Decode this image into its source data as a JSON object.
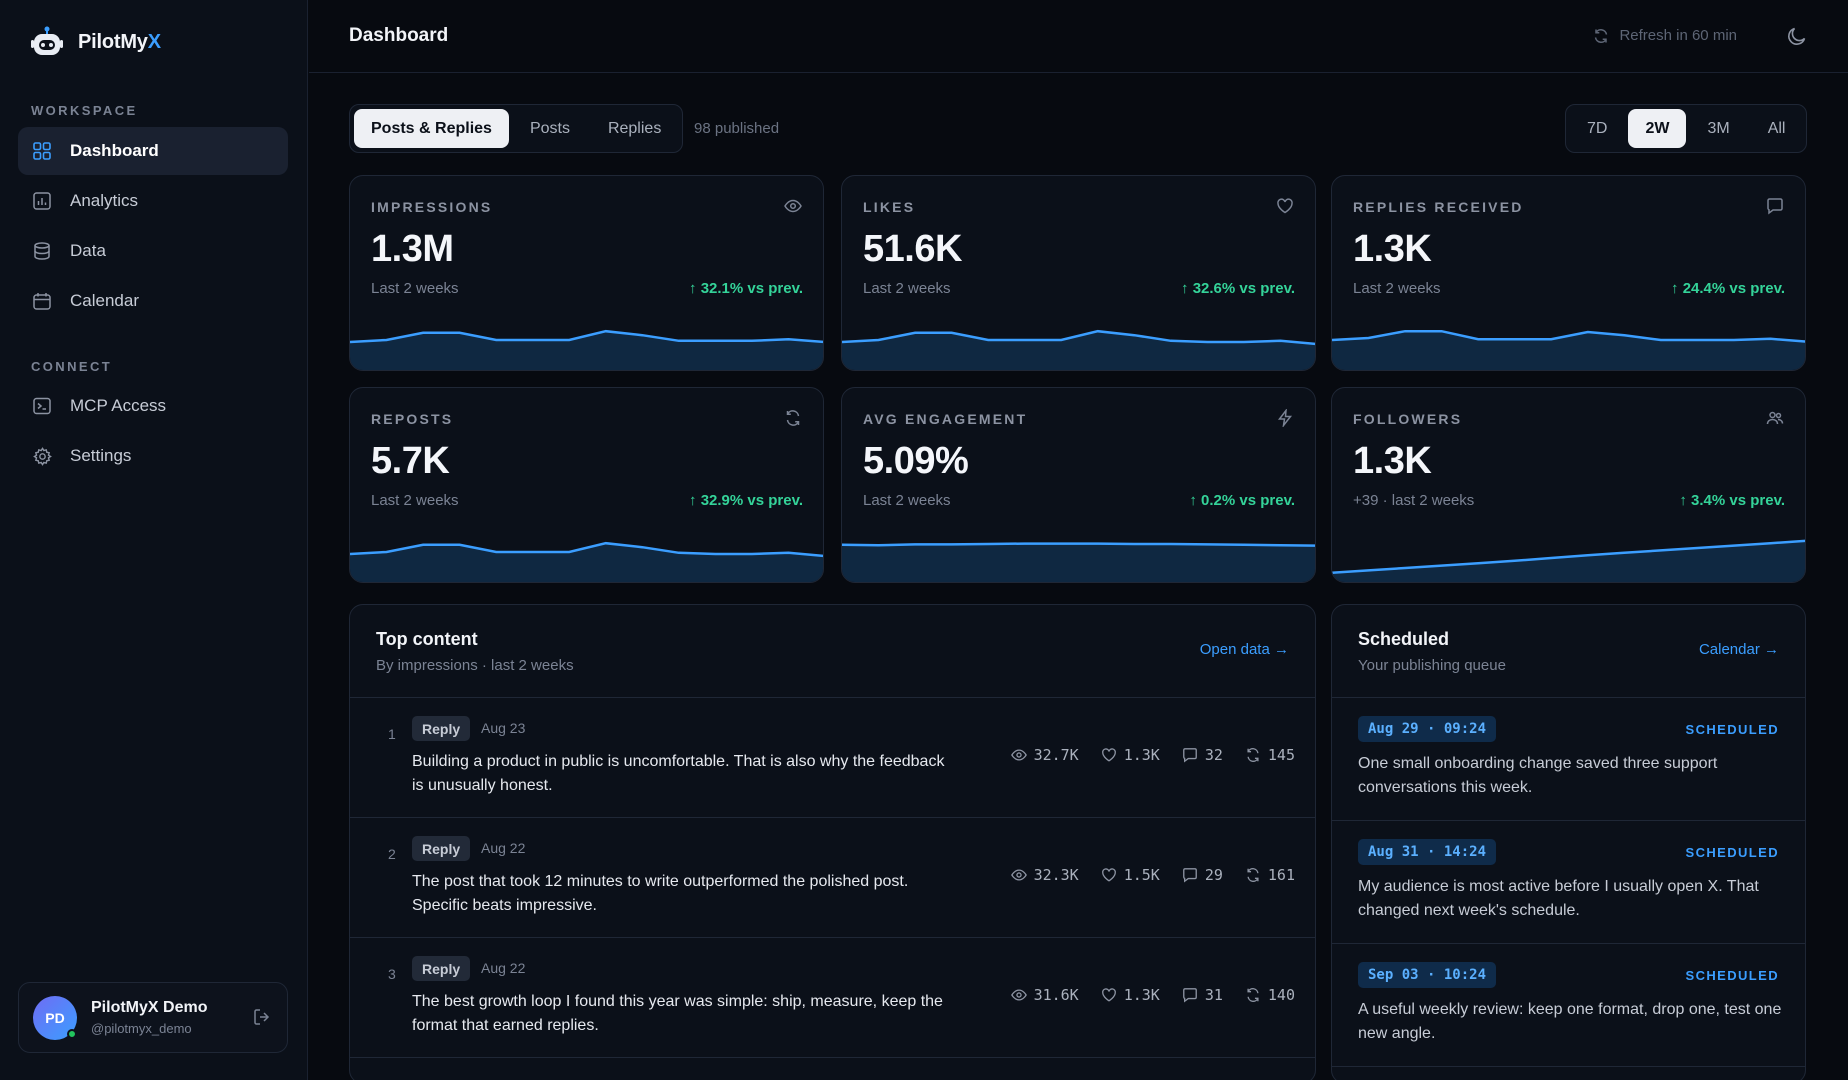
{
  "brand": {
    "name": "PilotMy",
    "accent": "X"
  },
  "sidebar": {
    "workspace_label": "WORKSPACE",
    "connect_label": "CONNECT",
    "items": [
      {
        "label": "Dashboard",
        "icon": "grid-icon"
      },
      {
        "label": "Analytics",
        "icon": "bar-chart-icon"
      },
      {
        "label": "Data",
        "icon": "database-icon"
      },
      {
        "label": "Calendar",
        "icon": "calendar-icon"
      },
      {
        "label": "MCP Access",
        "icon": "terminal-icon"
      },
      {
        "label": "Settings",
        "icon": "gear-icon"
      }
    ]
  },
  "user": {
    "initials": "PD",
    "name": "PilotMyX Demo",
    "handle": "@pilotmyx_demo"
  },
  "header": {
    "title": "Dashboard",
    "refresh": "Refresh in 60 min"
  },
  "filters": {
    "content_tabs": [
      "Posts & Replies",
      "Posts",
      "Replies"
    ],
    "published": "98 published",
    "ranges": [
      "7D",
      "2W",
      "3M",
      "All"
    ]
  },
  "stats": [
    {
      "label": "IMPRESSIONS",
      "value": "1.3M",
      "sub": "Last 2 weeks",
      "delta": "32.1% vs prev.",
      "icon": "eye-icon",
      "trend": [
        0.55,
        0.6,
        0.78,
        0.78,
        0.6,
        0.6,
        0.6,
        0.82,
        0.72,
        0.58,
        0.58,
        0.58,
        0.62,
        0.55
      ]
    },
    {
      "label": "LIKES",
      "value": "51.6K",
      "sub": "Last 2 weeks",
      "delta": "32.6% vs prev.",
      "icon": "heart-icon",
      "trend": [
        0.55,
        0.6,
        0.78,
        0.78,
        0.6,
        0.6,
        0.6,
        0.82,
        0.72,
        0.58,
        0.55,
        0.55,
        0.58,
        0.5
      ]
    },
    {
      "label": "REPLIES RECEIVED",
      "value": "1.3K",
      "sub": "Last 2 weeks",
      "delta": "24.4% vs prev.",
      "icon": "chat-icon",
      "trend": [
        0.6,
        0.65,
        0.82,
        0.82,
        0.62,
        0.62,
        0.62,
        0.8,
        0.72,
        0.6,
        0.6,
        0.6,
        0.63,
        0.56
      ]
    },
    {
      "label": "REPOSTS",
      "value": "5.7K",
      "sub": "Last 2 weeks",
      "delta": "32.9% vs prev.",
      "icon": "repost-icon",
      "trend": [
        0.55,
        0.6,
        0.78,
        0.78,
        0.6,
        0.6,
        0.6,
        0.82,
        0.72,
        0.58,
        0.55,
        0.55,
        0.58,
        0.5
      ]
    },
    {
      "label": "AVG ENGAGEMENT",
      "value": "5.09%",
      "sub": "Last 2 weeks",
      "delta": "0.2% vs prev.",
      "icon": "bolt-icon",
      "trend": [
        0.78,
        0.77,
        0.79,
        0.79,
        0.8,
        0.81,
        0.81,
        0.81,
        0.8,
        0.8,
        0.79,
        0.78,
        0.77,
        0.76
      ]
    },
    {
      "label": "FOLLOWERS",
      "value": "1.3K",
      "sub": "+39 · last 2 weeks",
      "delta": "3.4% vs prev.",
      "icon": "users-icon",
      "trend": [
        0.08,
        0.14,
        0.2,
        0.26,
        0.32,
        0.38,
        0.45,
        0.52,
        0.58,
        0.64,
        0.7,
        0.76,
        0.82,
        0.88
      ]
    }
  ],
  "top_content": {
    "title": "Top content",
    "subtitle": "By impressions · last 2 weeks",
    "link": "Open data →",
    "rows": [
      {
        "num": "1",
        "type": "Reply",
        "date": "Aug 23",
        "text": "Building a product in public is uncomfortable. That is also why the feedback is unusually honest.",
        "views": "32.7K",
        "likes": "1.3K",
        "replies": "32",
        "reposts": "145"
      },
      {
        "num": "2",
        "type": "Reply",
        "date": "Aug 22",
        "text": "The post that took 12 minutes to write outperformed the polished post. Specific beats impressive.",
        "views": "32.3K",
        "likes": "1.5K",
        "replies": "29",
        "reposts": "161"
      },
      {
        "num": "3",
        "type": "Reply",
        "date": "Aug 22",
        "text": "The best growth loop I found this year was simple: ship, measure, keep the format that earned replies.",
        "views": "31.6K",
        "likes": "1.3K",
        "replies": "31",
        "reposts": "140"
      }
    ]
  },
  "scheduled": {
    "title": "Scheduled",
    "subtitle": "Your publishing queue",
    "link": "Calendar →",
    "items": [
      {
        "time": "Aug 29 · 09:24",
        "status": "SCHEDULED",
        "text": "One small onboarding change saved three support conversations this week."
      },
      {
        "time": "Aug 31 · 14:24",
        "status": "SCHEDULED",
        "text": "My audience is most active before I usually open X. That changed next week's schedule."
      },
      {
        "time": "Sep 03 · 10:24",
        "status": "SCHEDULED",
        "text": "A useful weekly review: keep one format, drop one, test one new angle."
      }
    ]
  },
  "colors": {
    "accent": "#3b9eff",
    "positive": "#34d399",
    "background": "#070a10"
  }
}
